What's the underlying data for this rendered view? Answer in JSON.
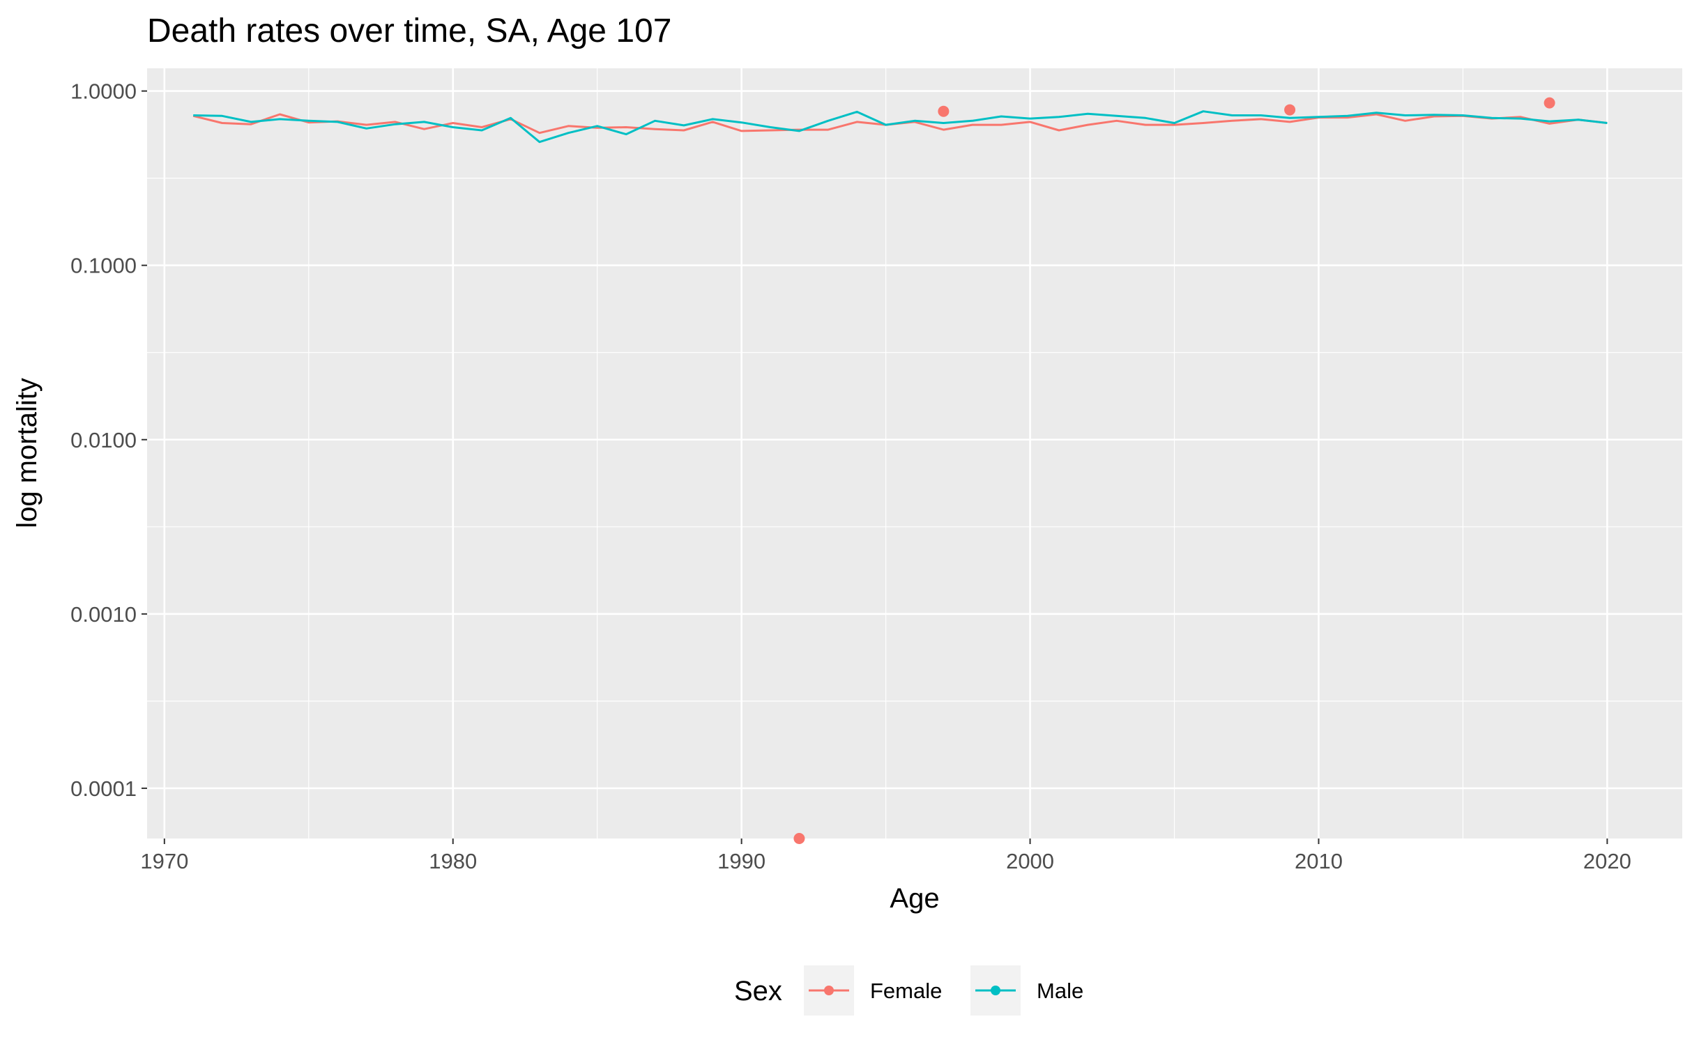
{
  "chart_data": {
    "type": "line",
    "title": "Death rates over time, SA, Age 107",
    "xlabel": "Age",
    "ylabel": "log mortality",
    "y_scale": "log10",
    "xlim": [
      1969.4,
      2022.6
    ],
    "ylim": [
      5.15e-05,
      1.35
    ],
    "x_ticks": [
      1970,
      1980,
      1990,
      2000,
      2010,
      2020
    ],
    "x_tick_labels": [
      "1970",
      "1980",
      "1990",
      "2000",
      "2010",
      "2020"
    ],
    "y_ticks": [
      0.0001,
      0.001,
      0.01,
      0.1,
      1
    ],
    "y_tick_labels": [
      "0.0001",
      "0.0010",
      "0.0100",
      "0.1000",
      "1.0000"
    ],
    "grid": true,
    "legend": {
      "title": "Sex",
      "position": "bottom"
    },
    "series": [
      {
        "name": "Female",
        "color": "#F8766D",
        "x": [
          1971,
          1972,
          1973,
          1974,
          1975,
          1976,
          1977,
          1978,
          1979,
          1980,
          1981,
          1982,
          1983,
          1984,
          1985,
          1986,
          1987,
          1988,
          1989,
          1990,
          1991,
          1992,
          1993,
          1994,
          1995,
          1996,
          1997,
          1998,
          1999,
          2000,
          2001,
          2002,
          2003,
          2004,
          2005,
          2006,
          2007,
          2008,
          2009,
          2010,
          2011,
          2012,
          2013,
          2014,
          2015,
          2016,
          2017,
          2018,
          2019,
          2020
        ],
        "y": [
          0.72,
          0.655,
          0.645,
          0.735,
          0.66,
          0.67,
          0.64,
          0.665,
          0.605,
          0.655,
          0.62,
          0.69,
          0.575,
          0.63,
          0.615,
          0.62,
          0.605,
          0.595,
          0.665,
          0.59,
          0.595,
          0.6,
          0.6,
          0.665,
          0.64,
          0.665,
          0.6,
          0.64,
          0.64,
          0.665,
          0.595,
          0.64,
          0.675,
          0.64,
          0.64,
          0.655,
          0.675,
          0.69,
          0.665,
          0.705,
          0.705,
          0.735,
          0.675,
          0.715,
          0.72,
          0.695,
          0.71,
          0.65,
          0.685,
          0.655
        ]
      },
      {
        "name": "Male",
        "color": "#00BFC4",
        "x": [
          1971,
          1972,
          1973,
          1974,
          1975,
          1976,
          1977,
          1978,
          1979,
          1980,
          1981,
          1982,
          1983,
          1984,
          1985,
          1986,
          1987,
          1988,
          1989,
          1990,
          1991,
          1992,
          1993,
          1994,
          1995,
          1996,
          1997,
          1998,
          1999,
          2000,
          2001,
          2002,
          2003,
          2004,
          2005,
          2006,
          2007,
          2008,
          2009,
          2010,
          2011,
          2012,
          2013,
          2014,
          2015,
          2016,
          2017,
          2018,
          2019,
          2020
        ],
        "y": [
          0.725,
          0.72,
          0.665,
          0.69,
          0.675,
          0.665,
          0.61,
          0.645,
          0.665,
          0.62,
          0.595,
          0.7,
          0.51,
          0.575,
          0.63,
          0.565,
          0.675,
          0.635,
          0.69,
          0.66,
          0.62,
          0.59,
          0.675,
          0.76,
          0.64,
          0.675,
          0.655,
          0.675,
          0.715,
          0.695,
          0.71,
          0.74,
          0.72,
          0.7,
          0.655,
          0.765,
          0.725,
          0.725,
          0.7,
          0.71,
          0.72,
          0.75,
          0.725,
          0.73,
          0.725,
          0.7,
          0.695,
          0.67,
          0.685,
          0.655
        ]
      }
    ],
    "points": [
      {
        "series": "Female",
        "x": 1992,
        "y": 5.15e-05
      },
      {
        "series": "Female",
        "x": 1997,
        "y": 0.765
      },
      {
        "series": "Female",
        "x": 2009,
        "y": 0.78
      },
      {
        "series": "Female",
        "x": 2018,
        "y": 0.855
      }
    ]
  }
}
